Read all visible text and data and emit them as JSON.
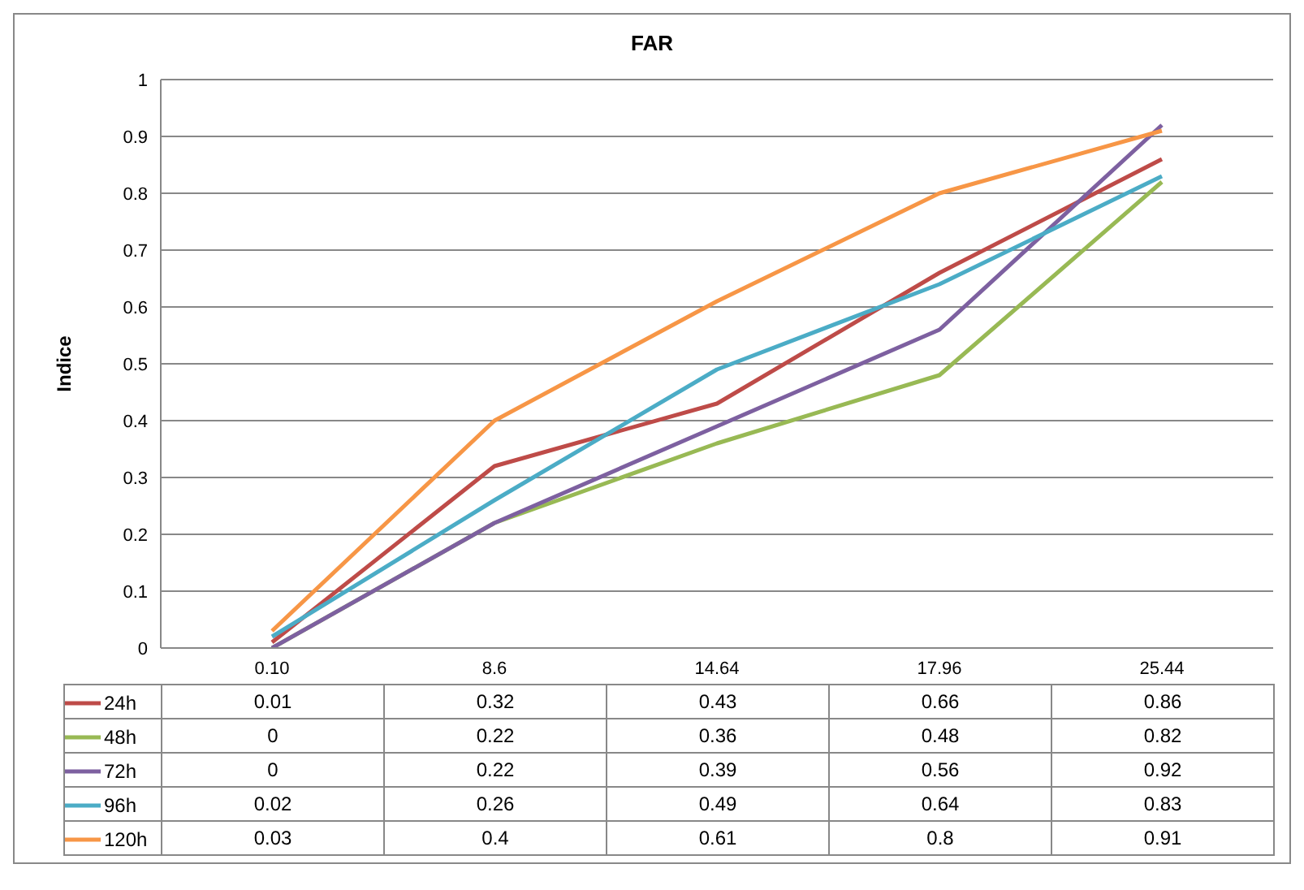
{
  "chart_data": {
    "type": "line",
    "title": "FAR",
    "ylabel": "Indice",
    "categories": [
      "0.10",
      "8.6",
      "14.64",
      "17.96",
      "25.44"
    ],
    "series": [
      {
        "name": "24h",
        "color": "#be4b48",
        "values": [
          0.01,
          0.32,
          0.43,
          0.66,
          0.86
        ]
      },
      {
        "name": "48h",
        "color": "#98b954",
        "values": [
          0,
          0.22,
          0.36,
          0.48,
          0.82
        ]
      },
      {
        "name": "72h",
        "color": "#7d60a0",
        "values": [
          0,
          0.22,
          0.39,
          0.56,
          0.92
        ]
      },
      {
        "name": "96h",
        "color": "#4bacc6",
        "values": [
          0.02,
          0.26,
          0.49,
          0.64,
          0.83
        ]
      },
      {
        "name": "120h",
        "color": "#f79646",
        "values": [
          0.03,
          0.4,
          0.61,
          0.8,
          0.91
        ]
      }
    ],
    "ylim": [
      0,
      1
    ],
    "yticks": [
      0,
      0.1,
      0.2,
      0.3,
      0.4,
      0.5,
      0.6,
      0.7,
      0.8,
      0.9,
      1
    ],
    "grid": "y",
    "legend": "bottom",
    "data_labels": true,
    "marker": "none",
    "line_style": "solid"
  }
}
